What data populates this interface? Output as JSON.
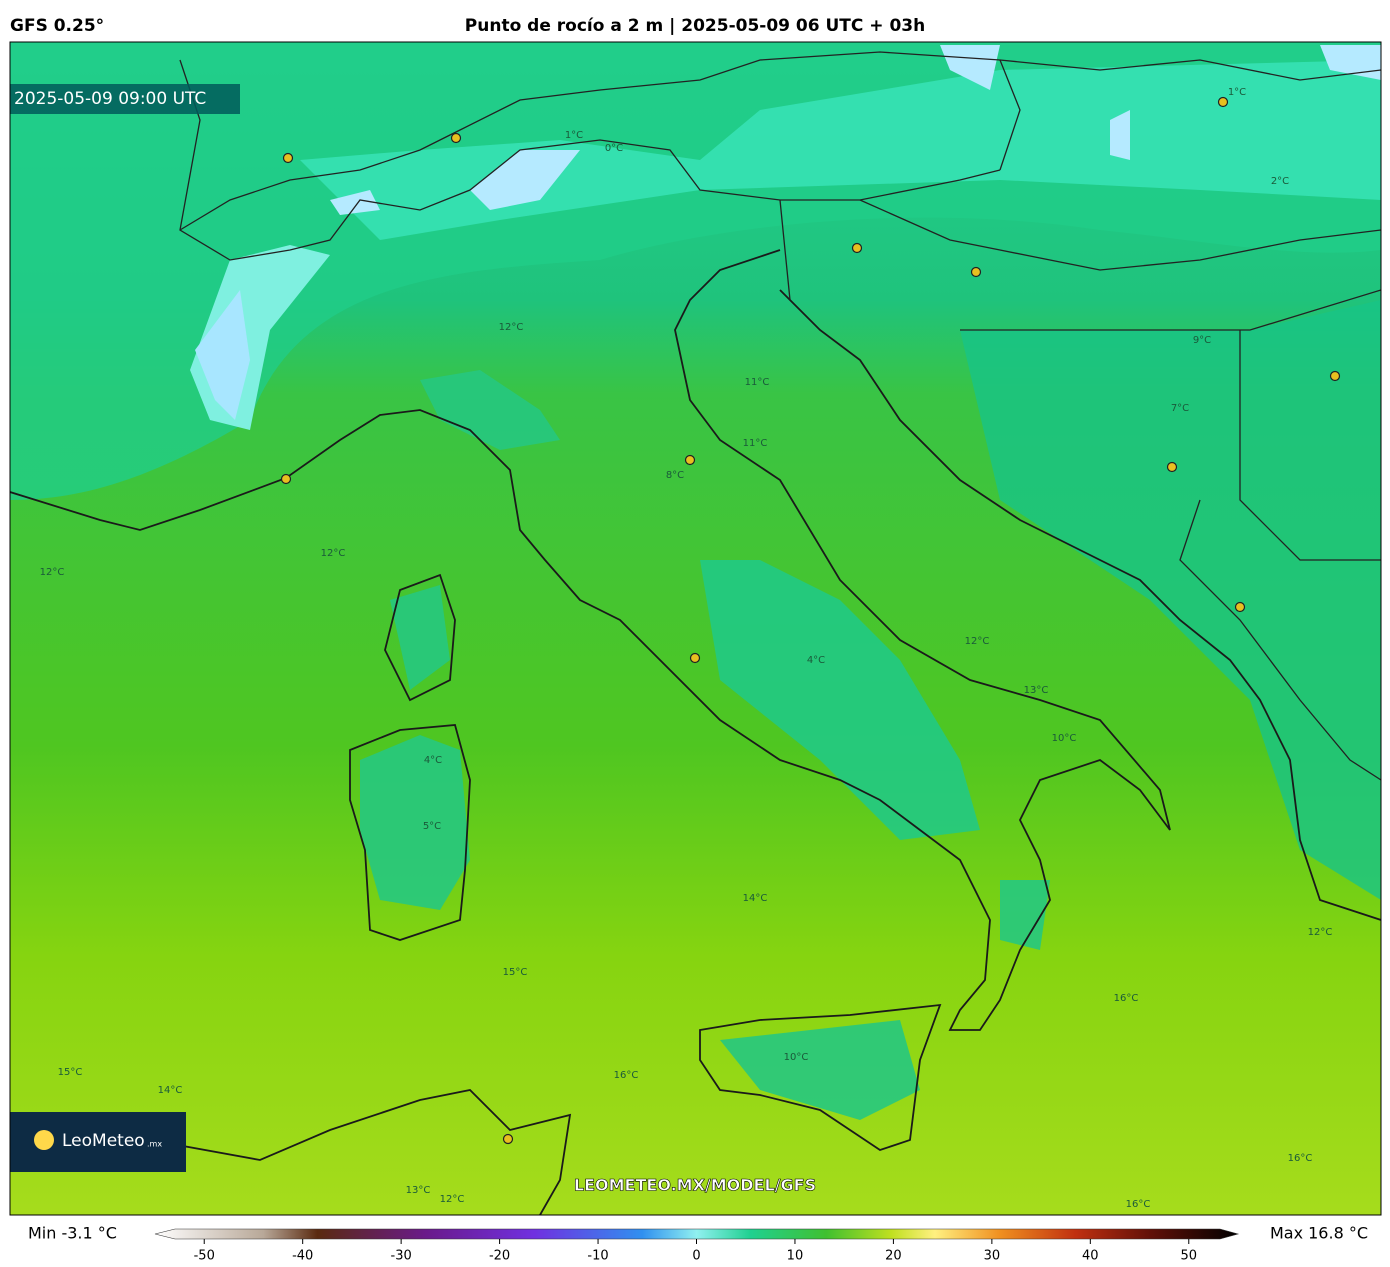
{
  "header": {
    "model": "GFS 0.25°",
    "title": "Punto de rocío a 2 m | 2025-05-09 06 UTC + 03h"
  },
  "map": {
    "valid_time": "2025-05-09 09:00 UTC",
    "watermark": "LEOMETEO.MX/MODEL/GFS",
    "logo": {
      "name": "LeoMeteo",
      "suffix": ".mx"
    },
    "contour_labels": [
      "12°C",
      "11°C",
      "11°C",
      "8°C",
      "12°C",
      "12°C",
      "4°C",
      "5°C",
      "4°C",
      "14°C",
      "15°C",
      "16°C",
      "16°C",
      "10°C",
      "13°C",
      "12°C",
      "9°C",
      "7°C",
      "1°C",
      "2°C",
      "0°C",
      "1°C",
      "15°C",
      "14°C",
      "13°C",
      "12°C",
      "16°C",
      "16°C",
      "12°C",
      "10°C"
    ]
  },
  "colorbar": {
    "min_label": "Min -3.1 °C",
    "max_label": "Max 16.8 °C",
    "lim": [
      -55,
      55
    ],
    "ticks": [
      -50,
      -40,
      -30,
      -20,
      -10,
      0,
      10,
      20,
      30,
      40,
      50
    ]
  }
}
